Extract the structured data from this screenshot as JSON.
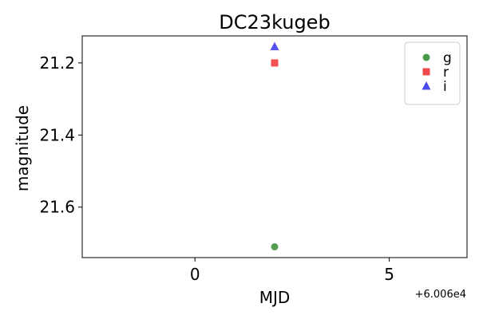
{
  "chart_data": {
    "type": "scatter",
    "title": "DC23kugeb",
    "xlabel": "MJD",
    "ylabel": "magnitude",
    "x_offset_label": "+6.006e4",
    "xlim": [
      -2.9,
      7.0
    ],
    "ylim": [
      21.74,
      21.125
    ],
    "y_inverted": true,
    "x_ticks": [
      0,
      5
    ],
    "x_tick_labels": [
      "0",
      "5"
    ],
    "y_ticks": [
      21.2,
      21.4,
      21.6
    ],
    "y_tick_labels": [
      "21.2",
      "21.4",
      "21.6"
    ],
    "grid": false,
    "legend_position": "top-right",
    "series": [
      {
        "name": "g",
        "marker": "circle",
        "color": "#4a9a4a",
        "points": [
          {
            "x": 2.05,
            "y": 21.71
          }
        ]
      },
      {
        "name": "r",
        "marker": "square",
        "color": "#f04848",
        "points": [
          {
            "x": 2.05,
            "y": 21.2
          }
        ]
      },
      {
        "name": "i",
        "marker": "triangle",
        "color": "#4a4af0",
        "points": [
          {
            "x": 2.05,
            "y": 21.155
          }
        ]
      }
    ]
  }
}
